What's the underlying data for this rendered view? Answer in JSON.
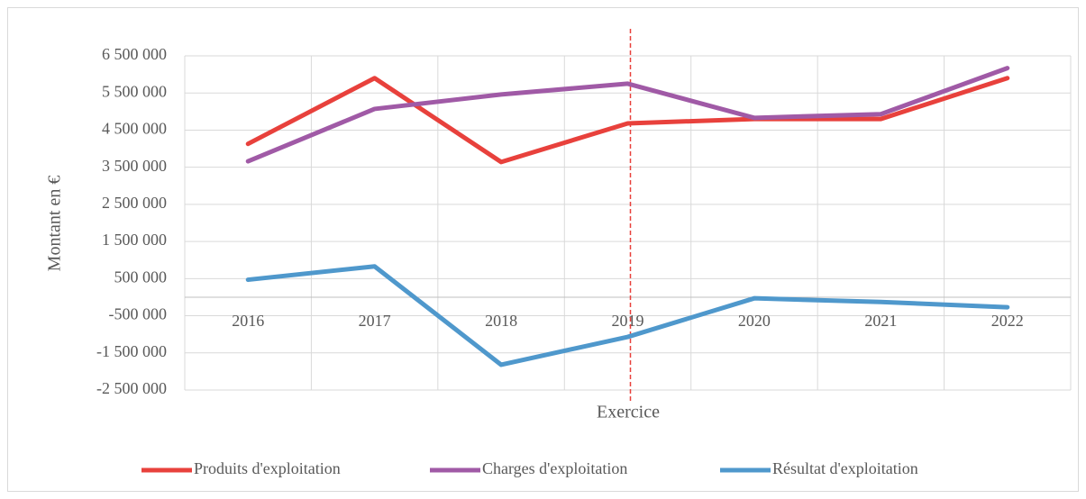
{
  "chart_data": {
    "type": "line",
    "y_label": "Montant en €",
    "x_label": "Exercice",
    "categories": [
      "2016",
      "2017",
      "2018",
      "2019",
      "2020",
      "2021",
      "2022"
    ],
    "series": [
      {
        "name": "Produits d'exploitation",
        "color": "#e8413c",
        "values": [
          4130000,
          5900000,
          3640000,
          4680000,
          4800000,
          4800000,
          5900000
        ]
      },
      {
        "name": "Charges d'exploitation",
        "color": "#a05aa6",
        "values": [
          3660000,
          5070000,
          5460000,
          5750000,
          4830000,
          4930000,
          6170000
        ]
      },
      {
        "name": "Résultat d'exploitation",
        "color": "#4f98cc",
        "values": [
          470000,
          830000,
          -1820000,
          -1070000,
          -30000,
          -130000,
          -270000
        ]
      }
    ],
    "ylim": [
      -2500000,
      6500000
    ],
    "yticks": [
      {
        "value": -2500000,
        "label": "-2 500 000"
      },
      {
        "value": -1500000,
        "label": "-1 500 000"
      },
      {
        "value": -500000,
        "label": "-500 000"
      },
      {
        "value": 500000,
        "label": "500 000"
      },
      {
        "value": 1500000,
        "label": "1 500 000"
      },
      {
        "value": 2500000,
        "label": "2 500 000"
      },
      {
        "value": 3500000,
        "label": "3 500 000"
      },
      {
        "value": 4500000,
        "label": "4 500 000"
      },
      {
        "value": 5500000,
        "label": "5 500 000"
      },
      {
        "value": 6500000,
        "label": "6 500 000"
      }
    ],
    "grid": true,
    "vline_category": "2019",
    "vline_color": "#e8413c",
    "legend": "bottom"
  }
}
